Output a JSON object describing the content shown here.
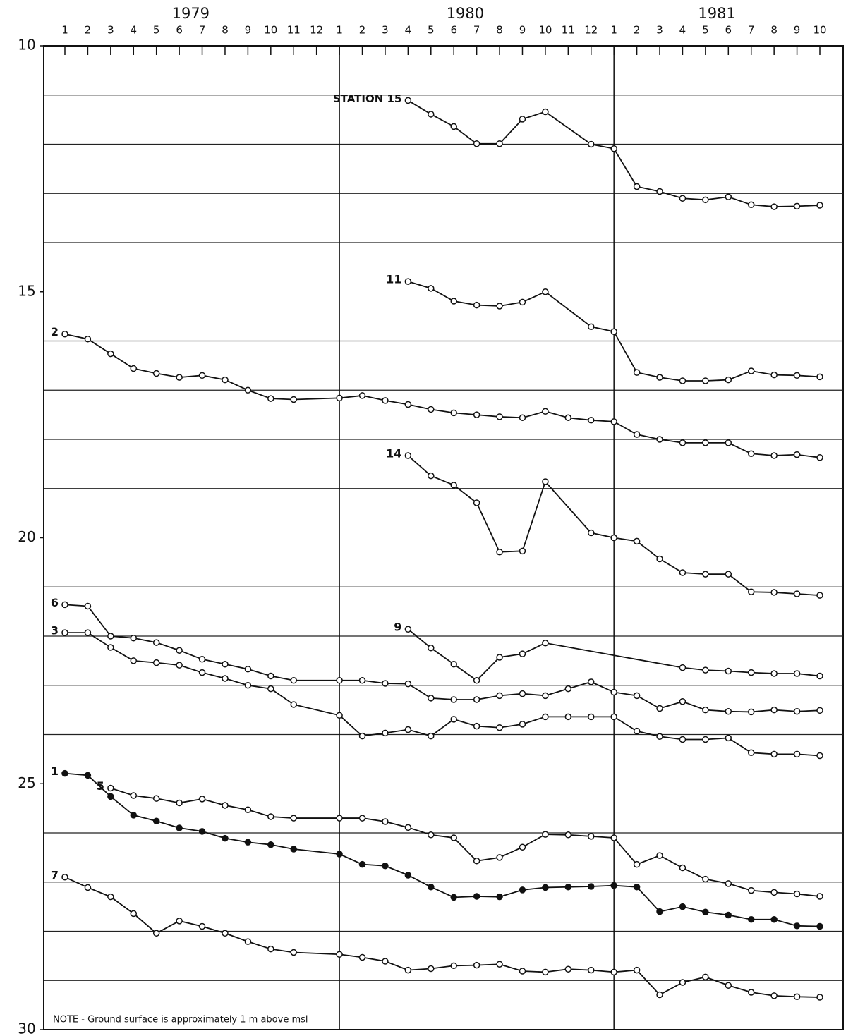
{
  "chart_data": {
    "type": "line",
    "note": "NOTE -  Ground surface is approximately 1 m above msl",
    "years": [
      "1979",
      "1980",
      "1981"
    ],
    "xlim": [
      "1979-01",
      "1981-10"
    ],
    "xticks": [
      {
        "value": "1979-01",
        "label": "1"
      },
      {
        "value": "1979-02",
        "label": "2"
      },
      {
        "value": "1979-03",
        "label": "3"
      },
      {
        "value": "1979-04",
        "label": "4"
      },
      {
        "value": "1979-05",
        "label": "5"
      },
      {
        "value": "1979-06",
        "label": "6"
      },
      {
        "value": "1979-07",
        "label": "7"
      },
      {
        "value": "1979-08",
        "label": "8"
      },
      {
        "value": "1979-09",
        "label": "9"
      },
      {
        "value": "1979-10",
        "label": "10"
      },
      {
        "value": "1979-11",
        "label": "11"
      },
      {
        "value": "1979-12",
        "label": "12"
      },
      {
        "value": "1980-01",
        "label": "1"
      },
      {
        "value": "1980-02",
        "label": "2"
      },
      {
        "value": "1980-03",
        "label": "3"
      },
      {
        "value": "1980-04",
        "label": "4"
      },
      {
        "value": "1980-05",
        "label": "5"
      },
      {
        "value": "1980-06",
        "label": "6"
      },
      {
        "value": "1980-07",
        "label": "7"
      },
      {
        "value": "1980-08",
        "label": "8"
      },
      {
        "value": "1980-09",
        "label": "9"
      },
      {
        "value": "1980-10",
        "label": "10"
      },
      {
        "value": "1980-11",
        "label": "11"
      },
      {
        "value": "1980-12",
        "label": "12"
      },
      {
        "value": "1981-01",
        "label": "1"
      },
      {
        "value": "1981-02",
        "label": "2"
      },
      {
        "value": "1981-03",
        "label": "3"
      },
      {
        "value": "1981-04",
        "label": "4"
      },
      {
        "value": "1981-05",
        "label": "5"
      },
      {
        "value": "1981-06",
        "label": "6"
      },
      {
        "value": "1981-07",
        "label": "7"
      },
      {
        "value": "1981-08",
        "label": "8"
      },
      {
        "value": "1981-09",
        "label": "9"
      },
      {
        "value": "1981-10",
        "label": "10"
      }
    ],
    "ylim": [
      10,
      30
    ],
    "y_inverted": true,
    "yticks": [
      10,
      15,
      20,
      25,
      30
    ],
    "minor_yticks": [
      11,
      12,
      13,
      14,
      16,
      17,
      18,
      19,
      21,
      22,
      23,
      24,
      26,
      27,
      28,
      29
    ],
    "grid": true,
    "color": "#111111",
    "series": [
      {
        "name": "STATION 15",
        "marker": "open",
        "x": [
          "1980-04",
          "1980-05",
          "1980-06",
          "1980-07",
          "1980-08",
          "1980-09",
          "1980-10",
          "1980-12",
          "1981-01",
          "1981-02",
          "1981-03",
          "1981-04",
          "1981-05",
          "1981-06",
          "1981-07",
          "1981-08",
          "1981-09",
          "1981-10"
        ],
        "values": [
          11.11,
          11.39,
          11.64,
          11.99,
          11.99,
          11.49,
          11.34,
          12.0,
          12.09,
          12.86,
          12.96,
          13.1,
          13.13,
          13.07,
          13.23,
          13.27,
          13.26,
          13.24
        ]
      },
      {
        "name": "11",
        "marker": "open",
        "x": [
          "1980-04",
          "1980-05",
          "1980-06",
          "1980-07",
          "1980-08",
          "1980-09",
          "1980-10",
          "1980-12",
          "1981-01",
          "1981-02",
          "1981-03",
          "1981-04",
          "1981-05",
          "1981-06",
          "1981-07",
          "1981-08",
          "1981-09",
          "1981-10"
        ],
        "values": [
          14.79,
          14.93,
          15.19,
          15.27,
          15.29,
          15.21,
          15.0,
          15.71,
          15.81,
          16.64,
          16.74,
          16.81,
          16.81,
          16.79,
          16.61,
          16.69,
          16.7,
          16.73
        ]
      },
      {
        "name": "2",
        "marker": "open",
        "x": [
          "1979-01",
          "1979-02",
          "1979-03",
          "1979-04",
          "1979-05",
          "1979-06",
          "1979-07",
          "1979-08",
          "1979-09",
          "1979-10",
          "1979-11",
          "1980-01",
          "1980-02",
          "1980-03",
          "1980-04",
          "1980-05",
          "1980-06",
          "1980-07",
          "1980-08",
          "1980-09",
          "1980-10",
          "1980-11",
          "1980-12",
          "1981-01",
          "1981-02",
          "1981-03",
          "1981-04",
          "1981-05",
          "1981-06",
          "1981-07",
          "1981-08",
          "1981-09",
          "1981-10"
        ],
        "values": [
          15.86,
          15.96,
          16.26,
          16.56,
          16.66,
          16.74,
          16.7,
          16.79,
          17.0,
          17.17,
          17.19,
          17.16,
          17.11,
          17.21,
          17.29,
          17.39,
          17.46,
          17.5,
          17.54,
          17.56,
          17.43,
          17.56,
          17.61,
          17.64,
          17.9,
          18.0,
          18.07,
          18.07,
          18.07,
          18.29,
          18.33,
          18.31,
          18.37
        ]
      },
      {
        "name": "14",
        "marker": "open",
        "x": [
          "1980-04",
          "1980-05",
          "1980-06",
          "1980-07",
          "1980-08",
          "1980-09",
          "1980-10",
          "1980-12",
          "1981-01",
          "1981-02",
          "1981-03",
          "1981-04",
          "1981-05",
          "1981-06",
          "1981-07",
          "1981-08",
          "1981-09",
          "1981-10"
        ],
        "values": [
          18.33,
          18.74,
          18.93,
          19.29,
          20.29,
          20.27,
          18.86,
          19.9,
          20.0,
          20.07,
          20.43,
          20.71,
          20.74,
          20.74,
          21.1,
          21.11,
          21.14,
          21.17
        ]
      },
      {
        "name": "6",
        "marker": "open",
        "x": [
          "1979-01",
          "1979-02",
          "1979-03",
          "1979-04",
          "1979-05",
          "1979-06",
          "1979-07",
          "1979-08",
          "1979-09",
          "1979-10",
          "1979-11",
          "1980-01",
          "1980-02",
          "1980-03",
          "1980-04",
          "1980-05",
          "1980-06",
          "1980-07",
          "1980-08",
          "1980-09",
          "1980-10",
          "1980-11",
          "1980-12",
          "1981-01",
          "1981-02",
          "1981-03",
          "1981-04",
          "1981-05",
          "1981-06",
          "1981-07",
          "1981-08",
          "1981-09",
          "1981-10"
        ],
        "values": [
          21.36,
          21.39,
          22.0,
          22.04,
          22.13,
          22.29,
          22.47,
          22.57,
          22.67,
          22.81,
          22.9,
          22.9,
          22.9,
          22.96,
          22.97,
          23.26,
          23.29,
          23.29,
          23.21,
          23.17,
          23.21,
          23.07,
          22.93,
          23.14,
          23.21,
          23.47,
          23.33,
          23.5,
          23.53,
          23.54,
          23.5,
          23.53,
          23.51
        ]
      },
      {
        "name": "3",
        "marker": "open",
        "x": [
          "1979-01",
          "1979-02",
          "1979-03",
          "1979-04",
          "1979-05",
          "1979-06",
          "1979-07",
          "1979-08",
          "1979-09",
          "1979-10",
          "1979-11",
          "1980-01",
          "1980-02",
          "1980-03",
          "1980-04",
          "1980-05",
          "1980-06",
          "1980-07",
          "1980-08",
          "1980-09",
          "1980-10",
          "1980-11",
          "1980-12",
          "1981-01",
          "1981-02",
          "1981-03",
          "1981-04",
          "1981-05",
          "1981-06",
          "1981-07",
          "1981-08",
          "1981-09",
          "1981-10"
        ],
        "values": [
          21.93,
          21.93,
          22.23,
          22.5,
          22.54,
          22.59,
          22.74,
          22.86,
          23.0,
          23.07,
          23.39,
          23.61,
          24.03,
          23.97,
          23.9,
          24.03,
          23.69,
          23.83,
          23.86,
          23.79,
          23.64,
          23.64,
          23.64,
          23.64,
          23.93,
          24.04,
          24.1,
          24.1,
          24.07,
          24.37,
          24.4,
          24.4,
          24.43
        ]
      },
      {
        "name": "9",
        "marker": "open",
        "x": [
          "1980-04",
          "1980-05",
          "1980-06",
          "1980-07",
          "1980-08",
          "1980-09",
          "1980-10",
          "1981-04",
          "1981-05",
          "1981-06",
          "1981-07",
          "1981-08",
          "1981-09",
          "1981-10"
        ],
        "values": [
          21.86,
          22.24,
          22.57,
          22.9,
          22.43,
          22.36,
          22.14,
          22.64,
          22.69,
          22.71,
          22.74,
          22.76,
          22.76,
          22.81
        ]
      },
      {
        "name": "1",
        "marker": "filled",
        "x": [
          "1979-01",
          "1979-02",
          "1979-03",
          "1979-04",
          "1979-05",
          "1979-06",
          "1979-07",
          "1979-08",
          "1979-09",
          "1979-10",
          "1979-11",
          "1980-01",
          "1980-02",
          "1980-03",
          "1980-04",
          "1980-05",
          "1980-06",
          "1980-07",
          "1980-08",
          "1980-09",
          "1980-10",
          "1980-11",
          "1980-12",
          "1981-01",
          "1981-02",
          "1981-03",
          "1981-04",
          "1981-05",
          "1981-06",
          "1981-07",
          "1981-08",
          "1981-09",
          "1981-10"
        ],
        "values": [
          24.79,
          24.83,
          25.26,
          25.64,
          25.76,
          25.9,
          25.97,
          26.11,
          26.19,
          26.24,
          26.33,
          26.43,
          26.64,
          26.67,
          26.86,
          27.1,
          27.31,
          27.29,
          27.3,
          27.16,
          27.11,
          27.1,
          27.09,
          27.07,
          27.1,
          27.6,
          27.5,
          27.61,
          27.67,
          27.76,
          27.76,
          27.89,
          27.9
        ]
      },
      {
        "name": "5",
        "marker": "open",
        "x": [
          "1979-03",
          "1979-04",
          "1979-05",
          "1979-06",
          "1979-07",
          "1979-08",
          "1979-09",
          "1979-10",
          "1979-11",
          "1980-01",
          "1980-02",
          "1980-03",
          "1980-04",
          "1980-05",
          "1980-06",
          "1980-07",
          "1980-08",
          "1980-09",
          "1980-10",
          "1980-11",
          "1980-12",
          "1981-01",
          "1981-02",
          "1981-03",
          "1981-04",
          "1981-05",
          "1981-06",
          "1981-07",
          "1981-08",
          "1981-09",
          "1981-10"
        ],
        "values": [
          25.09,
          25.24,
          25.3,
          25.39,
          25.31,
          25.44,
          25.53,
          25.67,
          25.7,
          25.7,
          25.7,
          25.77,
          25.89,
          26.04,
          26.1,
          26.57,
          26.5,
          26.29,
          26.03,
          26.04,
          26.07,
          26.1,
          26.64,
          26.46,
          26.71,
          26.94,
          27.03,
          27.17,
          27.21,
          27.24,
          27.29
        ]
      },
      {
        "name": "7",
        "marker": "open",
        "x": [
          "1979-01",
          "1979-02",
          "1979-03",
          "1979-04",
          "1979-05",
          "1979-06",
          "1979-07",
          "1979-08",
          "1979-09",
          "1979-10",
          "1979-11",
          "1980-01",
          "1980-02",
          "1980-03",
          "1980-04",
          "1980-05",
          "1980-06",
          "1980-07",
          "1980-08",
          "1980-09",
          "1980-10",
          "1980-11",
          "1980-12",
          "1981-01",
          "1981-02",
          "1981-03",
          "1981-04",
          "1981-05",
          "1981-06",
          "1981-07",
          "1981-08",
          "1981-09",
          "1981-10"
        ],
        "values": [
          26.9,
          27.11,
          27.3,
          27.64,
          28.04,
          27.79,
          27.9,
          28.04,
          28.21,
          28.36,
          28.43,
          28.47,
          28.53,
          28.61,
          28.79,
          28.76,
          28.7,
          28.69,
          28.67,
          28.81,
          28.83,
          28.77,
          28.79,
          28.83,
          28.79,
          29.29,
          29.04,
          28.93,
          29.1,
          29.24,
          29.31,
          29.33,
          29.34
        ]
      }
    ]
  }
}
